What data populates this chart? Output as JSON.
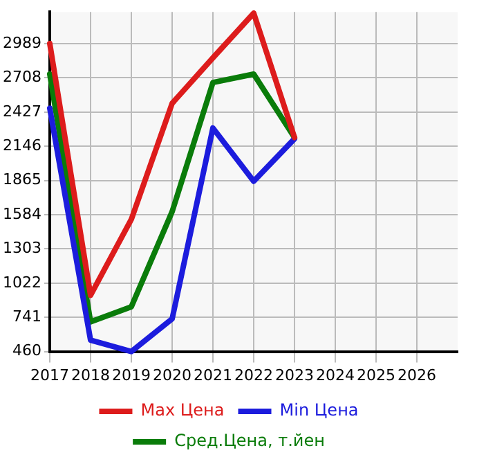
{
  "chart_data": {
    "type": "line",
    "x": [
      2017,
      2018,
      2019,
      2020,
      2021,
      2022,
      2023
    ],
    "xlim": [
      2017,
      2027
    ],
    "xticks": [
      2017,
      2018,
      2019,
      2020,
      2021,
      2022,
      2023,
      2024,
      2025,
      2026
    ],
    "ylim": [
      460,
      3250
    ],
    "yticks": [
      460,
      741,
      1022,
      1303,
      1584,
      1865,
      2146,
      2427,
      2708,
      2989
    ],
    "grid": true,
    "legend": "bottom",
    "marker": "none",
    "line_style": "solid",
    "series": [
      {
        "name": "Max Цена",
        "color": "#dd1c1c",
        "values": [
          2990,
          922,
          1546,
          2499,
          2873,
          3240,
          2218
        ]
      },
      {
        "name": "Min Цена",
        "color": "#1c1cdd",
        "values": [
          2458,
          554,
          460,
          728,
          2296,
          1859,
          2208
        ]
      },
      {
        "name": "Сред.Цена, т.йен",
        "color": "#0a7c0a",
        "values": [
          2739,
          704,
          828,
          1609,
          2670,
          2739,
          2218
        ]
      }
    ]
  }
}
